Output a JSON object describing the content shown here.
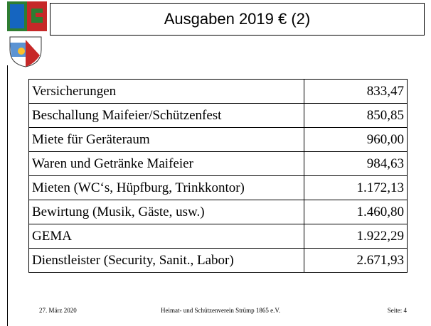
{
  "header": {
    "title": "Ausgaben 2019 € (2)"
  },
  "table": {
    "rows": [
      [
        "Versicherungen",
        "833,47"
      ],
      [
        "Beschallung Maifeier/Schützenfest",
        "850,85"
      ],
      [
        "Miete für Geräteraum",
        "960,00"
      ],
      [
        "Waren und Getränke Maifeier",
        "984,63"
      ],
      [
        "Mieten (WC‘s, Hüpfburg, Trinkkontor)",
        "1.172,13"
      ],
      [
        "Bewirtung (Musik, Gäste, usw.)",
        "1.460,80"
      ],
      [
        "GEMA",
        "1.922,29"
      ],
      [
        "Dienstleister (Security, Sanit., Labor)",
        "2.671,93"
      ]
    ]
  },
  "footer": {
    "date": "27. März 2020",
    "org": "Heimat- und Schützenverein Strümp 1865 e.V.",
    "page": "Seite: 4"
  }
}
